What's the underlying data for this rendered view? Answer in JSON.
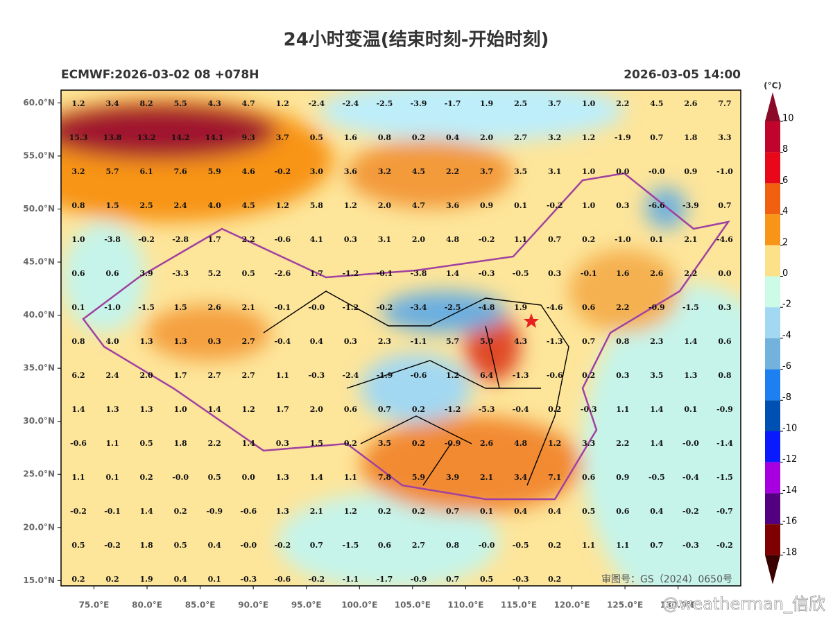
{
  "title": "24小时变温(结束时刻-开始时刻)",
  "subtitle_left": "ECMWF:2026-03-02 08 +078H",
  "subtitle_right": "2026-03-05 14:00",
  "xlim": [
    71.9,
    135.9
  ],
  "ylim": [
    14.5,
    61.2
  ],
  "xticks": [
    {
      "value": 75,
      "label": "75.0°E"
    },
    {
      "value": 80,
      "label": "80.0°E"
    },
    {
      "value": 85,
      "label": "85.0°E"
    },
    {
      "value": 90,
      "label": "90.0°E"
    },
    {
      "value": 95,
      "label": "95.0°E"
    },
    {
      "value": 100,
      "label": "100.0°E"
    },
    {
      "value": 105,
      "label": "105.0°E"
    },
    {
      "value": 110,
      "label": "110.0°E"
    },
    {
      "value": 115,
      "label": "115.0°E"
    },
    {
      "value": 120,
      "label": "120.0°E"
    },
    {
      "value": 125,
      "label": "125.0°E"
    },
    {
      "value": 130,
      "label": "130.0°E"
    }
  ],
  "yticks": [
    {
      "value": 60,
      "label": "60.0°N"
    },
    {
      "value": 55,
      "label": "55.0°N"
    },
    {
      "value": 50,
      "label": "50.0°N"
    },
    {
      "value": 45,
      "label": "45.0°N"
    },
    {
      "value": 40,
      "label": "40.0°N"
    },
    {
      "value": 35,
      "label": "35.0°N"
    },
    {
      "value": 30,
      "label": "30.0°N"
    },
    {
      "value": 25,
      "label": "25.0°N"
    },
    {
      "value": 20,
      "label": "20.0°N"
    },
    {
      "value": 15,
      "label": "15.0°N"
    }
  ],
  "grid": [
    [
      "1.2",
      "3.4",
      "8.2",
      "5.5",
      "4.3",
      "4.7",
      "1.2",
      "-2.4",
      "-2.4",
      "-2.5",
      "-3.9",
      "-1.7",
      "1.9",
      "2.5",
      "3.7",
      "1.0",
      "2.2",
      "4.5",
      "2.6",
      "7.7"
    ],
    [
      "15.3",
      "13.8",
      "13.2",
      "14.2",
      "14.1",
      "9.3",
      "3.7",
      "0.5",
      "1.6",
      "0.8",
      "0.2",
      "0.4",
      "2.0",
      "2.7",
      "3.2",
      "1.2",
      "-1.9",
      "0.7",
      "1.8",
      "3.3"
    ],
    [
      "3.2",
      "5.7",
      "6.1",
      "7.6",
      "5.9",
      "4.6",
      "-0.2",
      "3.0",
      "3.6",
      "3.2",
      "4.5",
      "2.2",
      "3.7",
      "3.5",
      "3.1",
      "1.0",
      "0.0",
      "-0.0",
      "0.9",
      "-1.0"
    ],
    [
      "0.8",
      "1.5",
      "2.5",
      "2.4",
      "4.0",
      "4.5",
      "1.2",
      "5.8",
      "1.2",
      "2.0",
      "4.7",
      "3.6",
      "0.9",
      "0.1",
      "-0.2",
      "1.0",
      "0.3",
      "-6.6",
      "-3.9",
      "0.7"
    ],
    [
      "1.0",
      "-3.8",
      "-0.2",
      "-2.8",
      "1.7",
      "2.2",
      "-0.6",
      "4.1",
      "0.3",
      "3.1",
      "2.0",
      "4.8",
      "-0.2",
      "1.1",
      "0.7",
      "0.2",
      "-1.0",
      "0.1",
      "2.1",
      "-4.6"
    ],
    [
      "0.6",
      "0.6",
      "3.9",
      "-3.3",
      "5.2",
      "0.5",
      "-2.6",
      "1.7",
      "-1.2",
      "-0.1",
      "-3.8",
      "1.4",
      "-0.3",
      "-0.5",
      "0.3",
      "-0.1",
      "1.6",
      "2.6",
      "2.2",
      "0.0"
    ],
    [
      "0.1",
      "-1.0",
      "-1.5",
      "1.5",
      "2.6",
      "2.1",
      "-0.1",
      "-0.0",
      "-1.2",
      "-0.2",
      "-3.4",
      "-2.5",
      "-4.8",
      "1.9",
      "-4.6",
      "0.6",
      "2.2",
      "-0.9",
      "-1.5",
      "0.3"
    ],
    [
      "0.8",
      "4.0",
      "1.3",
      "1.3",
      "0.3",
      "2.7",
      "-0.4",
      "0.4",
      "0.3",
      "2.3",
      "-1.1",
      "5.7",
      "5.0",
      "4.3",
      "-1.3",
      "0.7",
      "0.8",
      "2.3",
      "1.4",
      "0.6"
    ],
    [
      "6.2",
      "2.4",
      "2.0",
      "1.7",
      "2.7",
      "2.7",
      "1.1",
      "-0.3",
      "-2.4",
      "-1.9",
      "-0.6",
      "1.2",
      "6.4",
      "-1.3",
      "-0.6",
      "0.2",
      "0.3",
      "3.5",
      "1.3",
      "0.8"
    ],
    [
      "1.4",
      "1.3",
      "1.3",
      "1.0",
      "1.4",
      "1.2",
      "1.7",
      "2.0",
      "0.6",
      "0.7",
      "0.2",
      "-1.2",
      "-5.3",
      "-0.4",
      "0.2",
      "-0.3",
      "1.1",
      "1.4",
      "0.1",
      "-0.9"
    ],
    [
      "-0.6",
      "1.1",
      "0.5",
      "1.8",
      "2.2",
      "1.4",
      "0.3",
      "1.5",
      "0.2",
      "3.5",
      "0.2",
      "-0.9",
      "2.6",
      "4.8",
      "1.2",
      "3.3",
      "2.2",
      "1.4",
      "-0.0",
      "-1.4"
    ],
    [
      "1.1",
      "0.1",
      "0.2",
      "-0.0",
      "0.5",
      "0.0",
      "1.3",
      "1.4",
      "1.1",
      "7.8",
      "5.9",
      "3.9",
      "2.1",
      "3.4",
      "7.1",
      "0.6",
      "0.9",
      "-0.5",
      "-0.4",
      "-1.5"
    ],
    [
      "-0.2",
      "-0.1",
      "1.4",
      "0.2",
      "-0.9",
      "-0.6",
      "1.3",
      "2.1",
      "1.2",
      "0.2",
      "0.2",
      "0.7",
      "0.1",
      "0.4",
      "0.4",
      "0.5",
      "0.6",
      "0.4",
      "-0.2",
      "-0.7"
    ],
    [
      "0.5",
      "-0.2",
      "1.8",
      "0.5",
      "0.4",
      "-0.0",
      "-0.2",
      "0.7",
      "-1.5",
      "0.6",
      "2.7",
      "0.8",
      "-0.0",
      "-0.5",
      "0.2",
      "1.1",
      "1.1",
      "0.7",
      "-0.3",
      "-0.2"
    ],
    [
      "0.2",
      "0.2",
      "1.9",
      "0.4",
      "0.1",
      "-0.3",
      "-0.6",
      "-0.2",
      "-1.1",
      "-1.7",
      "-0.9",
      "0.7",
      "0.5",
      "-0.3",
      "0.2"
    ]
  ],
  "colorbar": {
    "unit": "(°C)",
    "labels": [
      10,
      8,
      6,
      4,
      2,
      0,
      -2,
      -4,
      -6,
      -8,
      -10,
      -12,
      -14,
      -16,
      -18
    ],
    "colors": [
      "#8b0a2a",
      "#c0042c",
      "#e8081a",
      "#f06010",
      "#f89418",
      "#fde18a",
      "#ccfbe8",
      "#a2d8f2",
      "#72b2dc",
      "#1e80f0",
      "#0050b4",
      "#0a1aff",
      "#a600e0",
      "#520080",
      "#7e0000",
      "#3a0000"
    ]
  },
  "review_number": "审图号：GS（2024）0650号",
  "watermark": "@weatherman_信欣"
}
